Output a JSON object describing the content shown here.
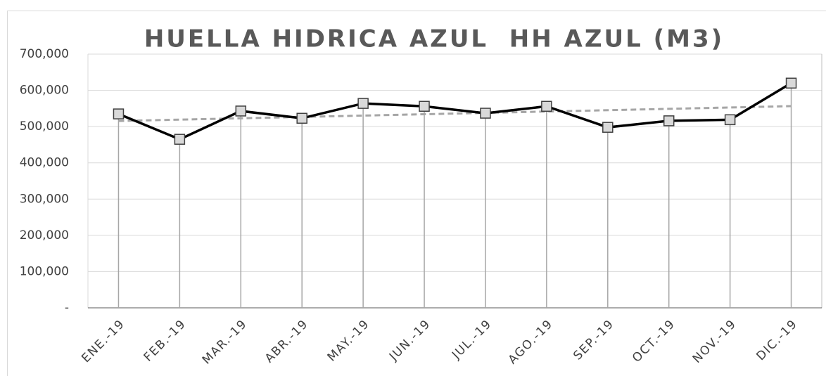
{
  "chart_data": {
    "type": "line",
    "title": "HUELLA HIDRICA AZUL  HH AZUL (M3)",
    "categories": [
      "ENE.-19",
      "FEB.-19",
      "MAR.-19",
      "ABR.-19",
      "MAY.-19",
      "JUN.-19",
      "JUL.-19",
      "AGO.-19",
      "SEP.-19",
      "OCT.-19",
      "NOV.-19",
      "DIC.-19"
    ],
    "series": [
      {
        "color": "#000000",
        "values": [
          535000,
          465000,
          543000,
          523000,
          564000,
          556000,
          537000,
          556000,
          498000,
          516000,
          519000,
          620000
        ]
      }
    ],
    "ylim": [
      0,
      700000
    ],
    "yticks": [
      {
        "value": 0,
        "label": "-"
      },
      {
        "value": 100000,
        "label": "100,000"
      },
      {
        "value": 200000,
        "label": "200,000"
      },
      {
        "value": 300000,
        "label": "300,000"
      },
      {
        "value": 400000,
        "label": "400,000"
      },
      {
        "value": 500000,
        "label": "500,000"
      },
      {
        "value": 600000,
        "label": "600,000"
      },
      {
        "value": 700000,
        "label": "700,000"
      }
    ],
    "grid": true,
    "drop_lines": true,
    "trendline": "linear",
    "trendline_color": "#a6a6a6"
  }
}
